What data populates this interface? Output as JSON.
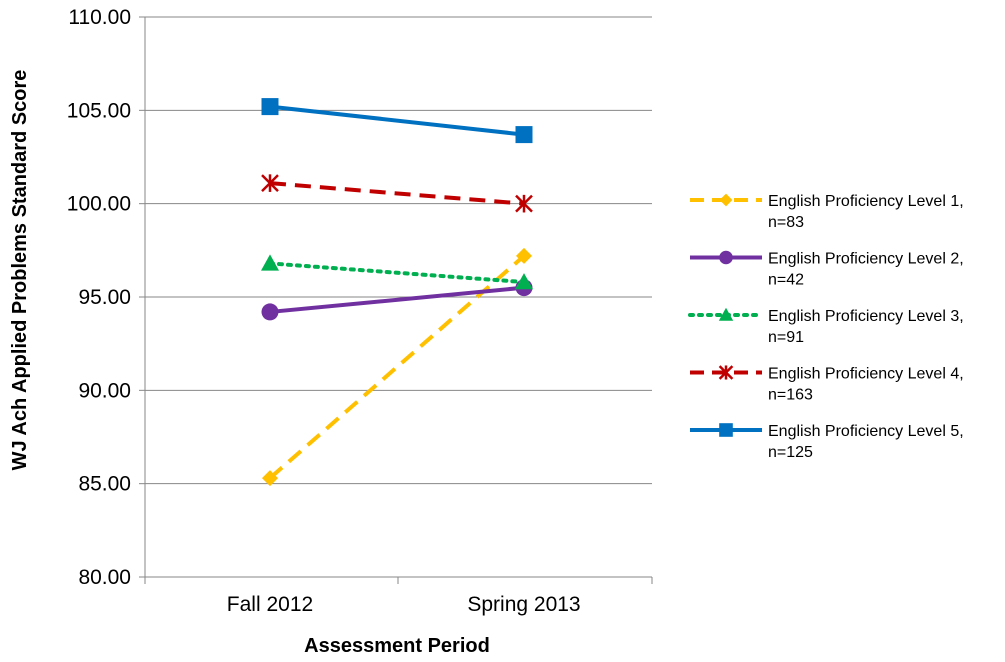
{
  "chart_data": {
    "type": "line",
    "title": "",
    "xlabel": "Assessment Period",
    "ylabel": "WJ Ach Applied Problems Standard Score",
    "categories": [
      "Fall 2012",
      "Spring 2013"
    ],
    "ylim": [
      80,
      110
    ],
    "yticks": [
      "80.00",
      "85.00",
      "90.00",
      "95.00",
      "100.00",
      "105.00",
      "110.00"
    ],
    "grid": true,
    "legend_position": "right",
    "series": [
      {
        "name": "English Proficiency Level 1,",
        "name_line2": "n=83",
        "values": [
          85.3,
          97.2
        ],
        "color": "#FFC000",
        "dash": "dashed",
        "marker": "diamond"
      },
      {
        "name": "English Proficiency Level 2,",
        "name_line2": "n=42",
        "values": [
          94.2,
          95.5
        ],
        "color": "#7030A0",
        "dash": "solid",
        "marker": "circle"
      },
      {
        "name": "English Proficiency Level 3,",
        "name_line2": "n=91",
        "values": [
          96.8,
          95.8
        ],
        "color": "#00B050",
        "dash": "dotted",
        "marker": "triangle"
      },
      {
        "name": "English Proficiency Level 4,",
        "name_line2": "n=163",
        "values": [
          101.1,
          100.0
        ],
        "color": "#C00000",
        "dash": "dashed",
        "marker": "star"
      },
      {
        "name": "English Proficiency Level 5,",
        "name_line2": "n=125",
        "values": [
          105.2,
          103.7
        ],
        "color": "#0070C0",
        "dash": "solid",
        "marker": "square"
      }
    ]
  }
}
